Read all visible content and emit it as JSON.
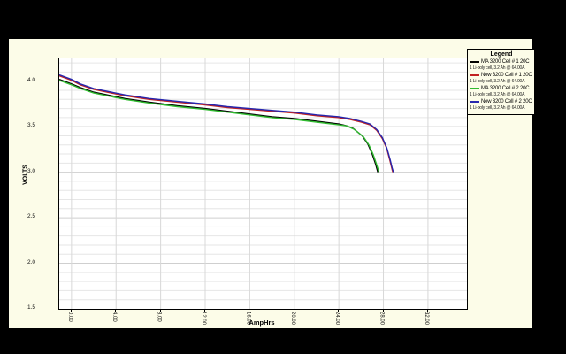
{
  "chart_data": {
    "type": "line",
    "xlabel": "AmpHrs",
    "ylabel": "VOLTS",
    "xlim": [
      -1.1,
      35.5
    ],
    "ylim": [
      1.5,
      4.25
    ],
    "x_ticks": [
      0,
      4,
      8,
      12,
      16,
      20,
      24,
      28,
      32
    ],
    "x_tick_labels": [
      "0.00",
      "4.00",
      "8.00",
      "12.00",
      "16.00",
      "20.00",
      "24.00",
      "28.00",
      "32.00"
    ],
    "y_ticks": [
      1.5,
      2.0,
      2.5,
      3.0,
      3.5,
      4.0
    ],
    "y_tick_labels": [
      "1.5",
      "2.0",
      "2.5",
      "3.0",
      "3.5",
      "4.0"
    ],
    "y_minor_step": 0.1,
    "grid": true,
    "colors": {
      "panel_bg": "#fcfce8",
      "plot_bg": "#ffffff",
      "grid_minor": "#e6e6e6",
      "grid_major": "#cfcfcf",
      "grid_vertical": "#d8d8d8",
      "axis": "#000000"
    },
    "legend": {
      "title": "Legend",
      "position": "top-right"
    },
    "series": [
      {
        "name": "MA 3200 Cell # 1 20C",
        "desc": "1 Li-poly cell, 3.2 Ah @ 64.00A",
        "color": "#000000",
        "points": [
          [
            -1.1,
            4.02
          ],
          [
            0,
            3.97
          ],
          [
            0.8,
            3.93
          ],
          [
            2,
            3.88
          ],
          [
            4.8,
            3.81
          ],
          [
            7,
            3.77
          ],
          [
            9.5,
            3.73
          ],
          [
            12,
            3.7
          ],
          [
            14,
            3.67
          ],
          [
            16,
            3.64
          ],
          [
            18,
            3.61
          ],
          [
            20,
            3.59
          ],
          [
            22,
            3.56
          ],
          [
            24,
            3.53
          ],
          [
            24.7,
            3.51
          ],
          [
            25.3,
            3.48
          ],
          [
            26.1,
            3.4
          ],
          [
            26.6,
            3.31
          ],
          [
            27.0,
            3.2
          ],
          [
            27.3,
            3.09
          ],
          [
            27.5,
            3.0
          ]
        ]
      },
      {
        "name": "New 3200 Cell # 1 20C",
        "desc": "1 Li-poly cell, 3.2 Ah @ 64.00A",
        "color": "#c22222",
        "points": [
          [
            -1.1,
            4.06
          ],
          [
            0,
            4.01
          ],
          [
            0.8,
            3.96
          ],
          [
            2,
            3.91
          ],
          [
            4.8,
            3.84
          ],
          [
            7,
            3.8
          ],
          [
            9.5,
            3.77
          ],
          [
            12,
            3.74
          ],
          [
            14,
            3.71
          ],
          [
            16,
            3.69
          ],
          [
            18,
            3.67
          ],
          [
            20,
            3.65
          ],
          [
            22,
            3.62
          ],
          [
            24,
            3.6
          ],
          [
            25,
            3.58
          ],
          [
            26,
            3.55
          ],
          [
            26.8,
            3.52
          ],
          [
            27.4,
            3.46
          ],
          [
            27.9,
            3.37
          ],
          [
            28.3,
            3.26
          ],
          [
            28.6,
            3.12
          ],
          [
            28.8,
            3.02
          ],
          [
            28.85,
            3.0
          ]
        ]
      },
      {
        "name": "MA 3200 Cell # 2 20C",
        "desc": "1 Li-poly cell, 3.2 Ah @ 64.00A",
        "color": "#30bb30",
        "points": [
          [
            -1.1,
            4.01
          ],
          [
            0,
            3.96
          ],
          [
            0.8,
            3.92
          ],
          [
            2,
            3.87
          ],
          [
            4.8,
            3.8
          ],
          [
            7,
            3.76
          ],
          [
            9.5,
            3.72
          ],
          [
            12,
            3.69
          ],
          [
            14,
            3.66
          ],
          [
            16,
            3.63
          ],
          [
            18,
            3.6
          ],
          [
            20,
            3.58
          ],
          [
            22,
            3.55
          ],
          [
            24,
            3.52
          ],
          [
            24.7,
            3.51
          ],
          [
            25.4,
            3.47
          ],
          [
            26.2,
            3.39
          ],
          [
            26.7,
            3.3
          ],
          [
            27.1,
            3.19
          ],
          [
            27.4,
            3.08
          ],
          [
            27.6,
            3.0
          ]
        ]
      },
      {
        "name": "New 3200 Cell # 2 20C",
        "desc": "1 Li-poly cell, 3.2 Ah @ 64.00A",
        "color": "#2626ae",
        "points": [
          [
            -1.1,
            4.07
          ],
          [
            0,
            4.02
          ],
          [
            0.8,
            3.97
          ],
          [
            2,
            3.92
          ],
          [
            4.8,
            3.85
          ],
          [
            7,
            3.81
          ],
          [
            9.5,
            3.78
          ],
          [
            12,
            3.75
          ],
          [
            14,
            3.72
          ],
          [
            16,
            3.7
          ],
          [
            18,
            3.68
          ],
          [
            20,
            3.66
          ],
          [
            22,
            3.63
          ],
          [
            24,
            3.61
          ],
          [
            25,
            3.59
          ],
          [
            26,
            3.56
          ],
          [
            26.8,
            3.53
          ],
          [
            27.4,
            3.47
          ],
          [
            27.9,
            3.38
          ],
          [
            28.3,
            3.27
          ],
          [
            28.6,
            3.14
          ],
          [
            28.8,
            3.04
          ],
          [
            28.9,
            3.0
          ]
        ]
      }
    ]
  }
}
